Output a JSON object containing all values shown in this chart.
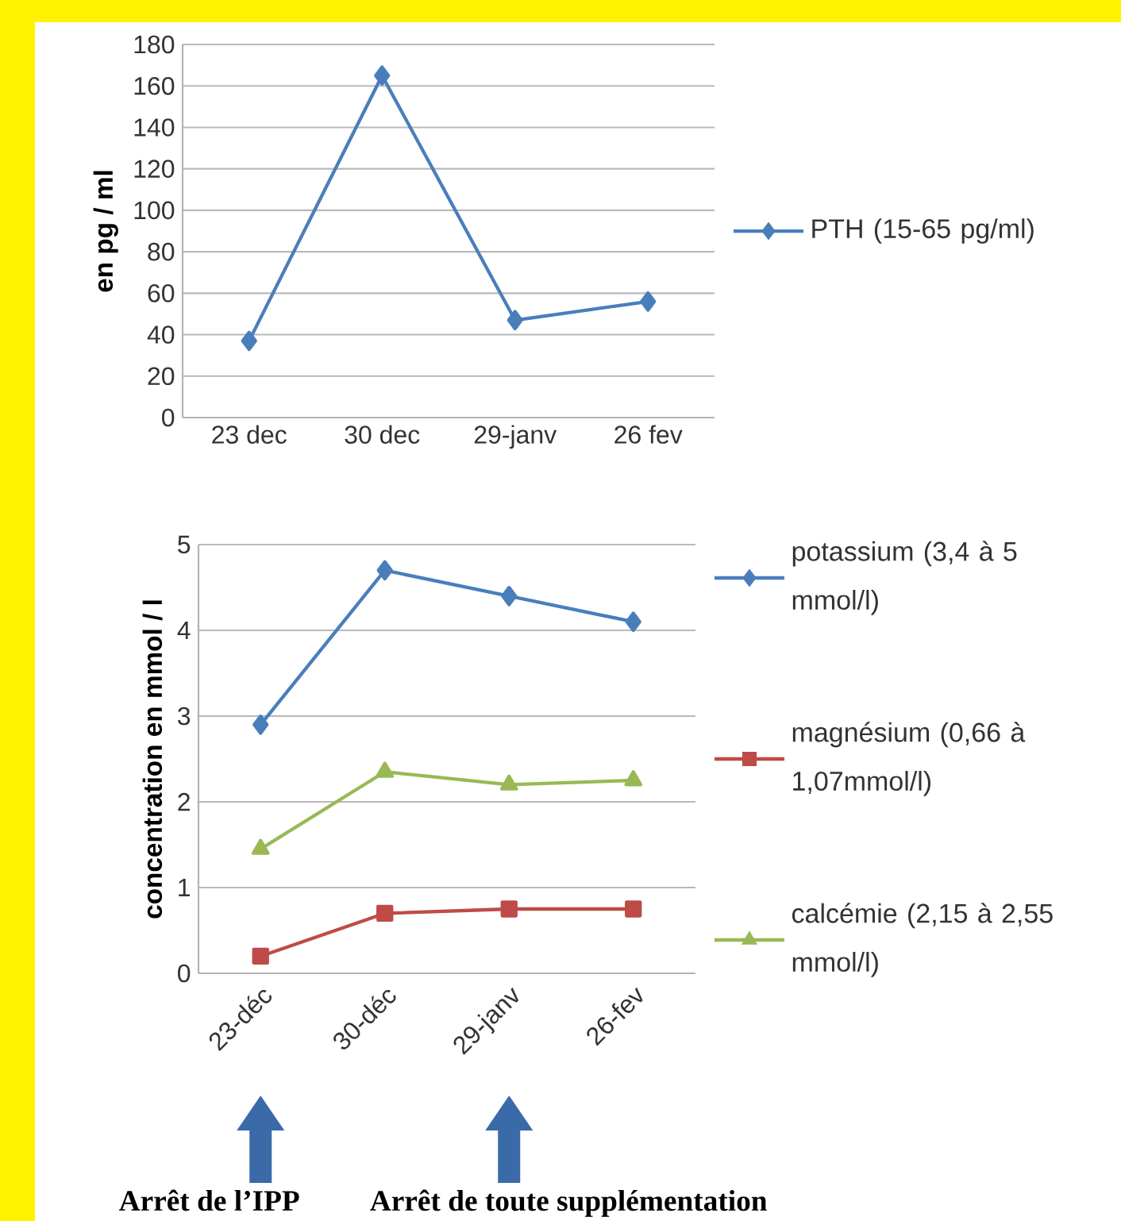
{
  "chart_data": [
    {
      "type": "line",
      "ylabel": "en pg / ml",
      "categories": [
        "23 dec",
        "30 dec",
        "29-janv",
        "26 fev"
      ],
      "series": [
        {
          "name": "PTH (15-65 pg/ml)",
          "color": "#4a7ebb",
          "marker": "diamond",
          "values": [
            37,
            165,
            47,
            56
          ]
        }
      ],
      "ylim": [
        0,
        180
      ],
      "yticks": [
        0,
        20,
        40,
        60,
        80,
        100,
        120,
        140,
        160,
        180
      ],
      "grid": "y",
      "legend": "right"
    },
    {
      "type": "line",
      "ylabel": "concentration en mmol / l",
      "categories": [
        "23-déc",
        "30-déc",
        "29-janv",
        "26-fev"
      ],
      "series": [
        {
          "name": "potassium (3,4 à 5 mmol/l)",
          "color": "#4a7ebb",
          "marker": "diamond",
          "values": [
            2.9,
            4.7,
            4.4,
            4.1
          ]
        },
        {
          "name": "magnésium (0,66 à 1,07mmol/l)",
          "color": "#be4b48",
          "marker": "square",
          "values": [
            0.2,
            0.7,
            0.75,
            0.75
          ]
        },
        {
          "name": "calcémie (2,15 à 2,55 mmol/l)",
          "color": "#98b954",
          "marker": "triangle",
          "values": [
            1.45,
            2.35,
            2.2,
            2.25
          ]
        }
      ],
      "ylim": [
        0,
        5
      ],
      "yticks": [
        0,
        1,
        2,
        3,
        4,
        5
      ],
      "grid": "y",
      "legend": "right",
      "annotations": [
        "Arrêt de l’IPP",
        "Arrêt de toute supplémentation"
      ]
    }
  ]
}
